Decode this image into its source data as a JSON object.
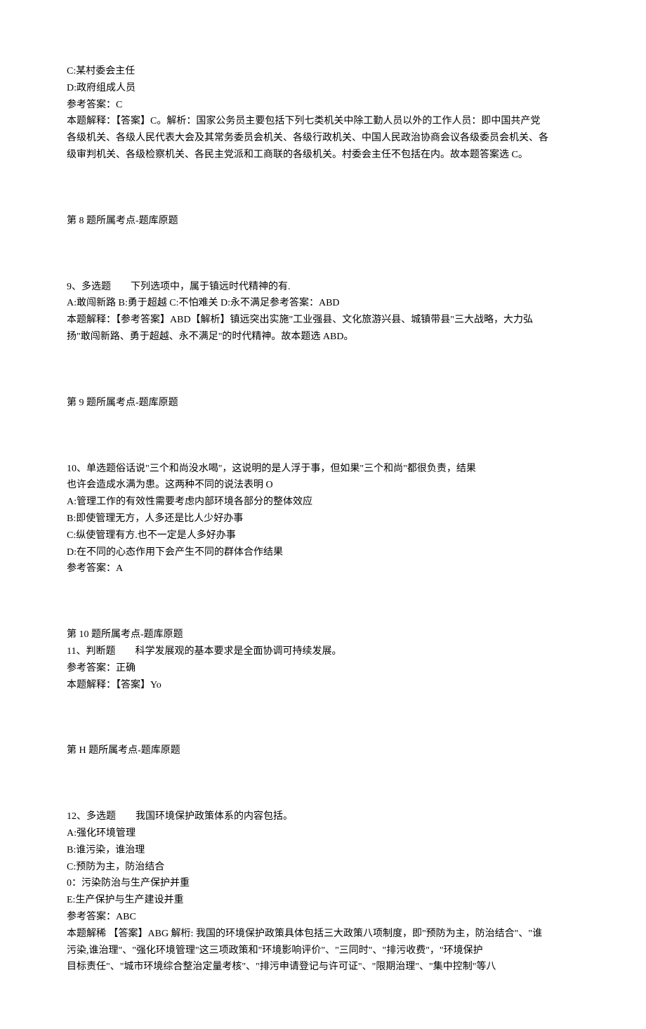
{
  "q8_continued": {
    "option_c": "C:某村委会主任",
    "option_d": "D:政府组成人员",
    "answer_label": "参考答案：C",
    "explain_l1": "本题解释：【答案】C。解析：国家公务员主要包括下列七类机关中除工勤人员以外的工作人员：即中国共产党",
    "explain_l2": "各级机关、各级人民代表大会及其常务委员会机关、各级行政机关、中国人民政治协商会议各级委员会机关、各",
    "explain_l3": "级审判机关、各级检察机关、各民主党派和工商联的各级机关。村委会主任不包括在内。故本题答案选 C。",
    "tag": "第 8 题所属考点-题库原题"
  },
  "q9": {
    "stem": "9、多选题　　下列选项中，属于镇远时代精神的有.",
    "answer_line": "A:敢闯新路 B:勇于超越 C:不怕难关 D:永不满足参考答案：ABD",
    "explain_l1": "本题解释：【参考答案】ABD【解析】镇远突出实施\"工业强县、文化旅游兴县、城镇带县\"三大战略，大力弘",
    "explain_l2": "扬\"敢闯新路、勇于超越、永不满足\"的时代精神。故本题选 ABD。",
    "tag": "第 9 题所属考点-题库原题"
  },
  "q10": {
    "stem_l1": "10、单选题俗话说\"三个和尚没水喝\"，这说明的是人浮于事，但如果\"三个和尚\"都很负责，结果",
    "stem_l2": "也许会造成水满为患。这两种不同的说法表明 O",
    "option_a": "A:管理工作的有效性需要考虑内部环境各部分的整体效应",
    "option_b": "B:即使管理无方，人多还是比人少好办事",
    "option_c": "C:纵使管理有方.也不一定是人多好办事",
    "option_d": "D:在不同的心态作用下会产生不同的群体合作结果",
    "answer_label": "参考答案：A",
    "tag": "第 10 题所属考点-题库原题"
  },
  "q11": {
    "stem": "11、判断题　　科学发展观的基本要求是全面协调可持续发展。",
    "answer_label": "参考答案：正确",
    "explain": "本题解释：【答案】Yo",
    "tag": "第 H 题所属考点-题库原题"
  },
  "q12": {
    "stem": "12、多选题　　我国环境保护政策体系的内容包括。",
    "option_a": "A:强化环境管理",
    "option_b": "B:谁污染，谁治理",
    "option_c": "C:预防为主，防治结合",
    "option_d": "0：污染防治与生产保护并重",
    "option_e": "E:生产保护与生产建设并重",
    "answer_label": "参考答案：ABC",
    "explain_l1": "本题解稀 【答案】ABG 解桁: 我国的环境保护政策具体包括三大政策八项制度，即\"预防为主，防治结合\"、\"谁",
    "explain_l2": "污染,谁治理\"、\"强化环境管理\"这三项政策和\"环境影响评价\"、\"三同时\"、\"排污收费\"，\"环境保护",
    "explain_l3": "目标责任\"、\"城市环境综合整治定量考核\"、\"排污申请登记与许可证\"、\"限期治理\"、\"集中控制\"等八"
  }
}
